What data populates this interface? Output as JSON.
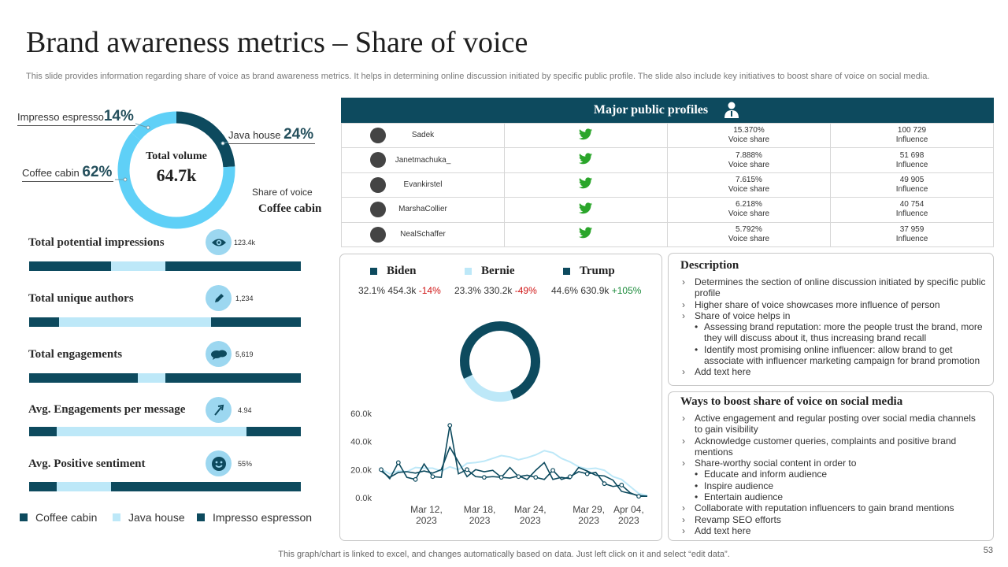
{
  "title": "Brand awareness metrics – Share of voice",
  "subtitle": "This slide provides information regarding share of voice as brand awareness metrics. It helps in determining online discussion initiated by specific public profile. The slide also include key initiatives to boost share of voice on social media.",
  "donut": {
    "center_label": "Total volume",
    "center_value": "64.7k",
    "labels": {
      "impresso": {
        "name": "Impresso espresso",
        "pct": "14%"
      },
      "java": {
        "name": "Java  house ",
        "pct": "24%"
      },
      "coffee": {
        "name": "Coffee  cabin ",
        "pct": "62%"
      }
    },
    "share_label": "Share of voice",
    "share_brand": "Coffee cabin",
    "colors": {
      "dark": "#0d4a5e",
      "light": "#5fd0f7"
    }
  },
  "metrics": [
    {
      "label": "Total potential impressions",
      "value": "123.4k",
      "icon": "eye-icon",
      "segments": [
        0.3,
        0.2,
        0.5
      ]
    },
    {
      "label": "Total unique authors",
      "value": "1,234",
      "icon": "pencil-icon",
      "segments": [
        0.11,
        0.56,
        0.33
      ]
    },
    {
      "label": "Total engagements",
      "value": "5,619",
      "icon": "chat-bubbles-icon",
      "segments": [
        0.4,
        0.1,
        0.5
      ]
    },
    {
      "label": "Avg. Engagements per message",
      "value": "4.94",
      "icon": "arrow-up-right-icon",
      "segments": [
        0.1,
        0.7,
        0.2
      ]
    },
    {
      "label": "Avg. Positive sentiment",
      "value": "55%",
      "icon": "smiley-icon",
      "segments": [
        0.1,
        0.2,
        0.7
      ]
    }
  ],
  "bar_legend": [
    "Coffee cabin",
    "Java house",
    "Impresso espresson"
  ],
  "profiles": {
    "header": "Major public profiles",
    "share_label": "Voice share",
    "influence_label": "Influence",
    "rows": [
      {
        "name": "Sadek",
        "share": "15.370%",
        "influence": "100 729"
      },
      {
        "name": "Janetmachuka_",
        "share": "7.888%",
        "influence": "51 698"
      },
      {
        "name": "Evankirstel",
        "share": "7.615%",
        "influence": "49 905"
      },
      {
        "name": "MarshaCollier",
        "share": "6.218%",
        "influence": "40 754"
      },
      {
        "name": "NealSchaffer",
        "share": "5.792%",
        "influence": "37 959"
      }
    ]
  },
  "chart_legend": [
    {
      "name": "Biden",
      "pct": "32.1%",
      "vol": "454.3k",
      "chg": "-14%",
      "color": "#0d4a5e"
    },
    {
      "name": "Bernie",
      "pct": "23.3%",
      "vol": "330.2k",
      "chg": "-49%",
      "color": "#bde8f8"
    },
    {
      "name": "Trump",
      "pct": "44.6%",
      "vol": "630.9k",
      "chg": "+105%",
      "color": "#0d4a5e"
    }
  ],
  "chart_data": [
    {
      "type": "pie",
      "labels": [
        "Coffee cabin",
        "Java house",
        "Impresso espresso"
      ],
      "values": [
        62,
        24,
        14
      ]
    },
    {
      "type": "pie",
      "labels": [
        "Biden",
        "Bernie",
        "Trump"
      ],
      "values": [
        32.1,
        23.3,
        44.6
      ]
    },
    {
      "type": "line",
      "x_ticks": [
        "Mar 12,|2023",
        "Mar 18,|2023",
        "Mar 24,|2023",
        "Mar 29,|2023",
        "Apr 04,|2023"
      ],
      "y_ticks": [
        "0.0k",
        "20.0k",
        "40.0k",
        "60.0k"
      ],
      "ylim": [
        0,
        60000
      ],
      "series": [
        {
          "name": "Biden",
          "color": "#0d4a5e",
          "values": [
            20000,
            13500,
            25000,
            14500,
            13000,
            24000,
            15000,
            14500,
            51500,
            17000,
            20000,
            15000,
            14500,
            15000,
            14500,
            21500,
            15000,
            16000,
            14500,
            13000,
            19500,
            13000,
            15000,
            18500,
            17000,
            18000,
            10000,
            8000,
            9000,
            3500,
            1000,
            1000
          ]
        },
        {
          "name": "Bernie",
          "color": "#bde8f8",
          "values": [
            20500,
            17000,
            19000,
            18500,
            21500,
            21000,
            21000,
            19000,
            22000,
            20000,
            24500,
            25000,
            26000,
            28000,
            30000,
            29000,
            27000,
            28500,
            30500,
            33500,
            32000,
            28000,
            25500,
            22000,
            20500,
            21000,
            19500,
            15000,
            13000,
            8000,
            3000,
            1500
          ]
        },
        {
          "name": "Trump",
          "color": "#0d4a5e",
          "values": [
            19000,
            14500,
            18000,
            18500,
            17500,
            19000,
            17500,
            20000,
            36000,
            25500,
            15000,
            20000,
            18500,
            19500,
            14500,
            14000,
            15500,
            13000,
            19500,
            25000,
            13000,
            14500,
            13500,
            21500,
            19000,
            16000,
            15500,
            12500,
            4500,
            3000,
            1500,
            1000
          ]
        }
      ]
    }
  ],
  "description": {
    "title": "Description",
    "items": [
      {
        "level": 1,
        "text": "Determines the section of online discussion initiated by specific public profile"
      },
      {
        "level": 1,
        "text": "Higher share of voice  showcases more influence of person"
      },
      {
        "level": 1,
        "text": "Share of voice helps in"
      },
      {
        "level": 2,
        "text": "Assessing brand reputation: more the people trust the brand, more they will discuss about it, thus increasing brand recall"
      },
      {
        "level": 2,
        "text": "Identify most promising online influencer: allow brand to get associate with influencer marketing campaign for brand promotion"
      },
      {
        "level": 1,
        "text": "Add text here"
      }
    ]
  },
  "ways": {
    "title": "Ways to boost share of voice on social media",
    "items": [
      {
        "level": 1,
        "text": "Active  engagement and regular posting over social media channels to gain visibility"
      },
      {
        "level": 1,
        "text": "Acknowledge customer queries, complaints and positive brand mentions"
      },
      {
        "level": 1,
        "text": "Share-worthy social content in order to"
      },
      {
        "level": 2,
        "text": "Educate and inform audience"
      },
      {
        "level": 2,
        "text": "Inspire audience"
      },
      {
        "level": 2,
        "text": "Entertain audience"
      },
      {
        "level": 1,
        "text": "Collaborate with reputation influencers to gain brand mentions"
      },
      {
        "level": 1,
        "text": "Revamp SEO efforts"
      },
      {
        "level": 1,
        "text": "Add text here"
      }
    ]
  },
  "footer": "This graph/chart is linked to excel,  and changes automatically based on data. Just left click on it and select “edit data”.",
  "page_number": "53"
}
